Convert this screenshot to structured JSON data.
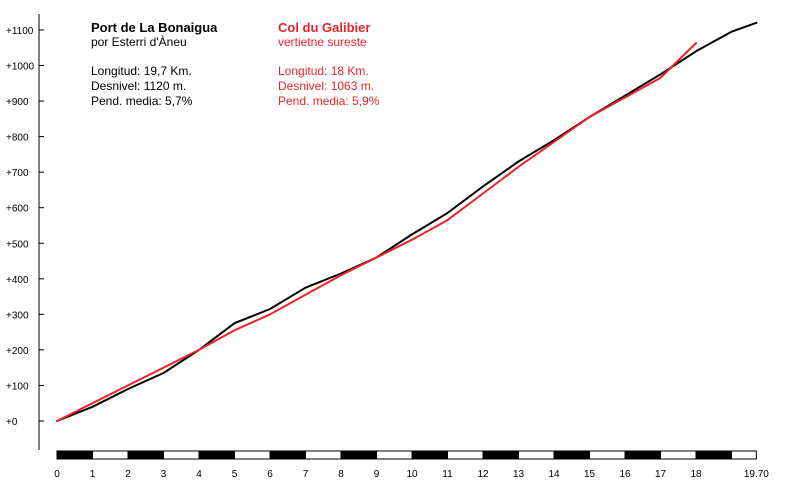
{
  "chart_data": {
    "type": "line",
    "x_unit": "km",
    "xlim": [
      0,
      19.7
    ],
    "ylim": [
      0,
      1100
    ],
    "y_ticks": [
      "+0",
      "+100",
      "+200",
      "+300",
      "+400",
      "+500",
      "+600",
      "+700",
      "+800",
      "+900",
      "+1000",
      "+1100"
    ],
    "x_ticks": [
      "0",
      "1",
      "2",
      "3",
      "4",
      "5",
      "6",
      "7",
      "8",
      "9",
      "10",
      "11",
      "12",
      "13",
      "14",
      "15",
      "16",
      "17",
      "18",
      "19.70"
    ],
    "series": [
      {
        "name": "Port de La Bonaigua",
        "subtitle": "por Esterri d'Àneu",
        "color": "#000000",
        "stats": [
          "Longitud: 19,7 Km.",
          "Desnivel: 1120 m.",
          "Pend. media: 5,7%"
        ],
        "x": [
          0,
          1,
          2,
          3,
          4,
          5,
          6,
          7,
          8,
          9,
          10,
          11,
          12,
          13,
          14,
          15,
          16,
          17,
          18,
          19,
          19.7
        ],
        "y": [
          0,
          40,
          90,
          135,
          200,
          275,
          315,
          375,
          415,
          460,
          525,
          585,
          660,
          730,
          790,
          855,
          915,
          975,
          1040,
          1095,
          1120
        ]
      },
      {
        "name": "Col du Galibier",
        "subtitle": "vertietne sureste",
        "color": "#e8242c",
        "stats": [
          "Longitud: 18 Km.",
          "Desnivel: 1063 m.",
          "Pend. media: 5,9%"
        ],
        "x": [
          0,
          1,
          2,
          3,
          4,
          5,
          6,
          7,
          8,
          9,
          10,
          11,
          12,
          13,
          14,
          15,
          16,
          17,
          18
        ],
        "y": [
          0,
          50,
          100,
          150,
          200,
          255,
          300,
          355,
          410,
          460,
          510,
          565,
          640,
          715,
          785,
          855,
          910,
          965,
          1063
        ]
      }
    ]
  }
}
